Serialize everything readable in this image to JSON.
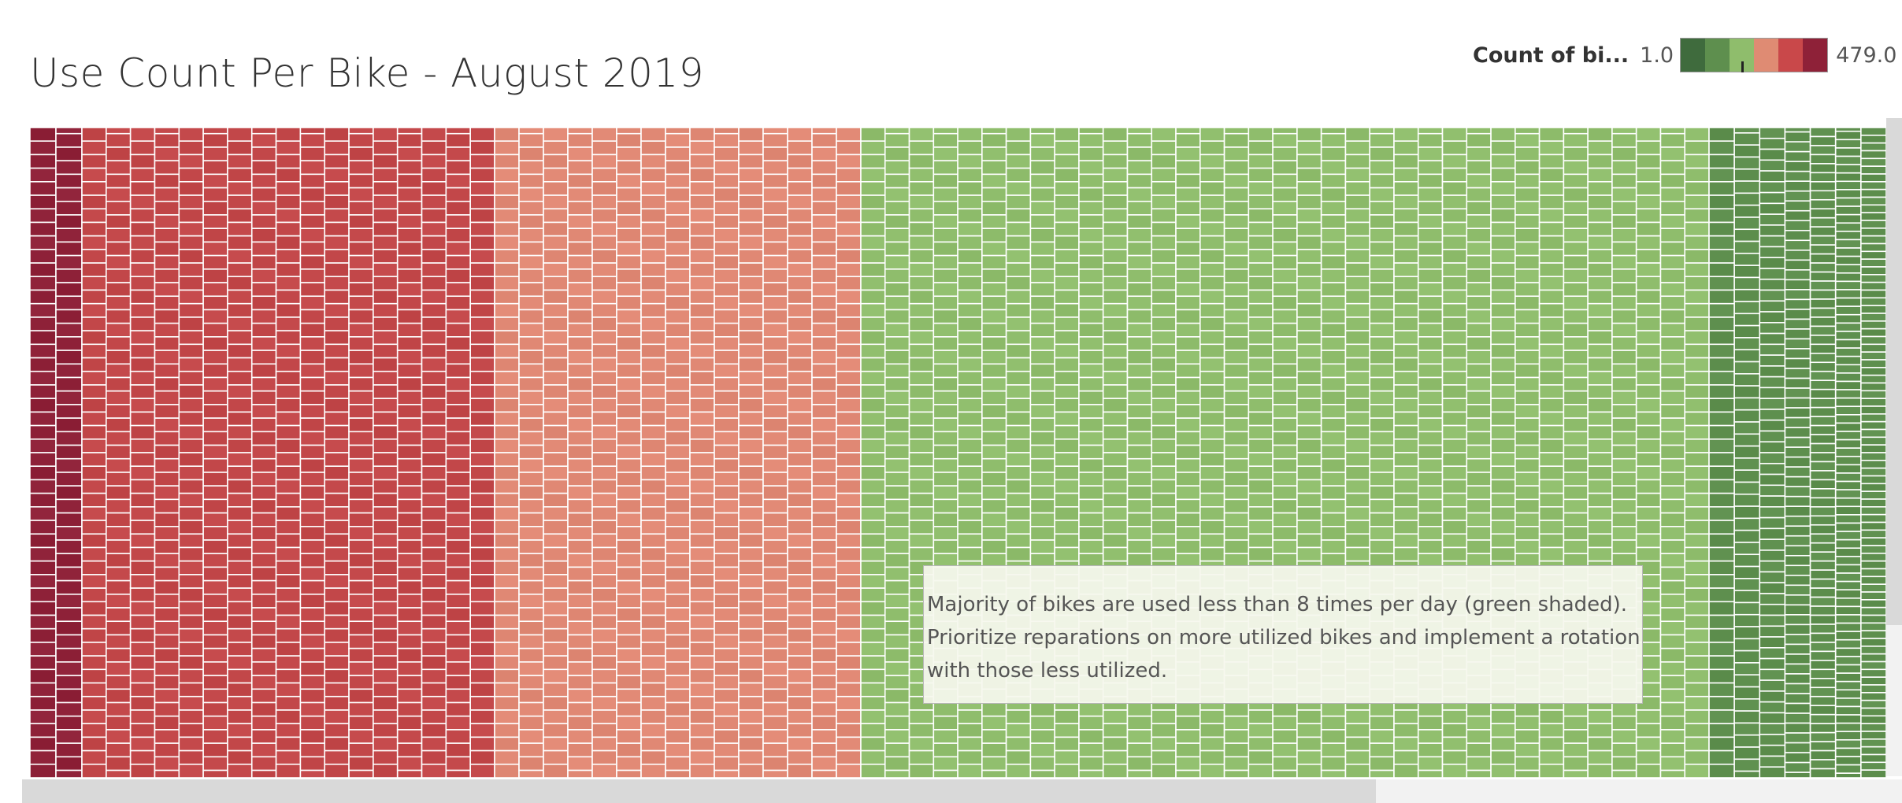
{
  "title": "Use Count Per Bike - August 2019",
  "legend": {
    "title": "Count of bi...",
    "min_label": "1.0",
    "max_label": "479.0",
    "colors": [
      "#3f6b3d",
      "#5e8f4e",
      "#8fbd6c",
      "#df8b73",
      "#c9484a",
      "#8e2138"
    ],
    "marker_value": 200
  },
  "annotation": {
    "lines": [
      "Majority of bikes are used less than 8 times per day (green shaded).",
      "Prioritize reparations on more utilized bikes and implement a rotation",
      "with those less utilized."
    ]
  },
  "chart_data": {
    "type": "treemap",
    "title": "Use Count Per Bike - August 2019",
    "measure": "Count of bi...",
    "color_range": [
      1.0,
      479.0
    ],
    "note": "Each tile is one bike; tile size and color encode use count. Individual values are not labeled; approximate banded structure.",
    "bands": [
      {
        "color": "#8e2138",
        "approx_use_count": 460,
        "columns": 2,
        "rows": 48
      },
      {
        "color": "#c24749",
        "approx_use_count": 350,
        "columns": 17,
        "rows": 48
      },
      {
        "color": "#e08874",
        "approx_use_count": 260,
        "columns": 15,
        "rows": 48
      },
      {
        "color": "#8fbd6c",
        "approx_use_count": 150,
        "columns": 35,
        "rows": 48
      },
      {
        "color": "#5e8f4e",
        "approx_use_count": 40,
        "columns": 7,
        "rows": 48
      }
    ]
  },
  "scrollbars": {
    "horizontal_visible_fraction": 0.72,
    "vertical_visible_fraction": 0.77
  }
}
